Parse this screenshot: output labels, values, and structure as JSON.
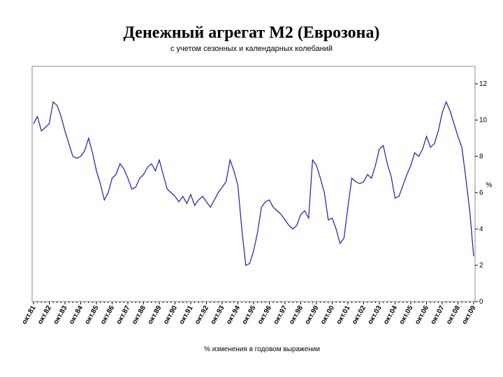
{
  "chart_data": {
    "type": "line",
    "title": "Денежный агрегат М2 (Еврозона)",
    "subtitle": "с учетом сезонных и календарных колебаний",
    "x_label": "% изменения в годовом выражении",
    "y_label": "%",
    "color": "#1c1ca8",
    "categories": [
      "окт.81",
      null,
      null,
      null,
      "окт.82",
      null,
      null,
      null,
      "окт.83",
      null,
      null,
      null,
      "окт.84",
      null,
      null,
      null,
      "окт.85",
      null,
      null,
      null,
      "окт.86",
      null,
      null,
      null,
      "окт.87",
      null,
      null,
      null,
      "окт.88",
      null,
      null,
      null,
      "окт.89",
      null,
      null,
      null,
      "окт.90",
      null,
      null,
      null,
      "окт.91",
      null,
      null,
      null,
      "окт.92",
      null,
      null,
      null,
      "окт.93",
      null,
      null,
      null,
      "окт.94",
      null,
      null,
      null,
      "окт.95",
      null,
      null,
      null,
      "окт.96",
      null,
      null,
      null,
      "окт.97",
      null,
      null,
      null,
      "окт.98",
      null,
      null,
      null,
      "окт.99",
      null,
      null,
      null,
      "окт.00",
      null,
      null,
      null,
      "окт.01",
      null,
      null,
      null,
      "окт.02",
      null,
      null,
      null,
      "окт.03",
      null,
      null,
      null,
      "окт.04",
      null,
      null,
      null,
      "окт.05",
      null,
      null,
      null,
      "окт.06",
      null,
      null,
      null,
      "окт.07",
      null,
      null,
      null,
      "окт.08",
      null,
      null,
      null,
      "окт.09"
    ],
    "values": [
      9.8,
      10.2,
      9.4,
      9.6,
      9.8,
      11.0,
      10.8,
      10.2,
      9.4,
      8.7,
      8.0,
      7.9,
      8.0,
      8.3,
      9.0,
      8.2,
      7.2,
      6.5,
      5.6,
      6.0,
      6.8,
      7.0,
      7.6,
      7.3,
      6.8,
      6.2,
      6.3,
      6.8,
      7.0,
      7.4,
      7.6,
      7.2,
      7.8,
      7.0,
      6.2,
      6.0,
      5.8,
      5.5,
      5.8,
      5.4,
      5.9,
      5.3,
      5.6,
      5.8,
      5.5,
      5.2,
      5.6,
      6.0,
      6.3,
      6.6,
      7.8,
      7.2,
      6.4,
      4.0,
      2.0,
      2.1,
      2.8,
      3.8,
      5.2,
      5.5,
      5.6,
      5.2,
      5.0,
      4.8,
      4.5,
      4.2,
      4.0,
      4.2,
      4.8,
      5.0,
      4.6,
      7.8,
      7.5,
      6.8,
      6.0,
      4.5,
      4.6,
      4.0,
      3.2,
      3.5,
      5.2,
      6.8,
      6.6,
      6.5,
      6.6,
      7.0,
      6.8,
      7.5,
      8.4,
      8.6,
      7.6,
      6.9,
      5.7,
      5.8,
      6.4,
      7.0,
      7.5,
      8.2,
      8.0,
      8.4,
      9.1,
      8.5,
      8.7,
      9.4,
      10.4,
      11.0,
      10.5,
      9.8,
      9.1,
      8.5,
      6.8,
      5.0,
      2.5
    ],
    "ylim": [
      0,
      12
    ],
    "yticks": [
      0,
      2,
      4,
      6,
      8,
      10,
      12
    ]
  }
}
